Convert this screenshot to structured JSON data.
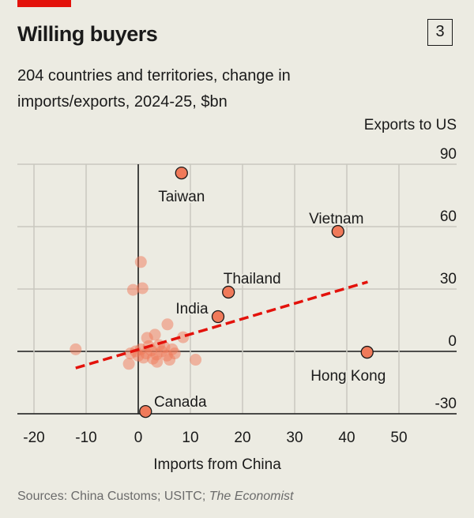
{
  "header": {
    "title": "Willing buyers",
    "badge": "3",
    "subtitle": "204 countries and territories, change in imports/exports, 2024-25, $bn"
  },
  "footer": {
    "source_prefix": "Sources: China Customs; USITC; ",
    "source_italic": "The Economist"
  },
  "colors": {
    "brand_bar": "#e3120b",
    "point": "#f07a5a",
    "trend": "#e3120b",
    "background": "#ecebe2"
  },
  "chart_data": {
    "type": "scatter",
    "xlabel": "Imports from China",
    "ylabel": "Exports to US",
    "xlim": [
      -23,
      61
    ],
    "ylim": [
      -30,
      90
    ],
    "xticks": [
      -20,
      -10,
      0,
      10,
      20,
      30,
      40,
      50
    ],
    "yticks": [
      90,
      60,
      30,
      0,
      -30
    ],
    "grid": true,
    "labeled_points": [
      {
        "name": "Taiwan",
        "x": 8.3,
        "y": 85.8
      },
      {
        "name": "Vietnam",
        "x": 38.3,
        "y": 57.7
      },
      {
        "name": "Thailand",
        "x": 17.3,
        "y": 28.5
      },
      {
        "name": "India",
        "x": 15.3,
        "y": 16.7
      },
      {
        "name": "Hong Kong",
        "x": 43.9,
        "y": -0.4
      },
      {
        "name": "Canada",
        "x": 1.4,
        "y": -28.9
      }
    ],
    "other_points": [
      {
        "x": 0.5,
        "y": 43
      },
      {
        "x": -1,
        "y": 29.6
      },
      {
        "x": 0.8,
        "y": 30.4
      },
      {
        "x": -12,
        "y": 1
      },
      {
        "x": 5.6,
        "y": 13
      },
      {
        "x": 3.2,
        "y": 8
      },
      {
        "x": 1.7,
        "y": 6.5
      },
      {
        "x": 8.6,
        "y": 6.8
      },
      {
        "x": 11,
        "y": -4
      },
      {
        "x": -1.8,
        "y": -6
      },
      {
        "x": 3.6,
        "y": -5
      },
      {
        "x": 6,
        "y": -4
      },
      {
        "x": -0.5,
        "y": 0
      },
      {
        "x": 0.5,
        "y": 1
      },
      {
        "x": 1.5,
        "y": -1
      },
      {
        "x": 2.5,
        "y": 0.5
      },
      {
        "x": 3.5,
        "y": -1.5
      },
      {
        "x": 4.5,
        "y": 0
      },
      {
        "x": 5.5,
        "y": -2
      },
      {
        "x": 6.5,
        "y": 1
      },
      {
        "x": 7,
        "y": -1
      },
      {
        "x": 1,
        "y": -3
      },
      {
        "x": 2,
        "y": 2.5
      },
      {
        "x": 4,
        "y": 3
      },
      {
        "x": -1.5,
        "y": -1
      },
      {
        "x": 0,
        "y": -2
      },
      {
        "x": 2.8,
        "y": -3.5
      },
      {
        "x": 5,
        "y": 2
      }
    ],
    "trendline": {
      "x": [
        -12,
        44
      ],
      "y": [
        -8,
        33.4
      ]
    }
  }
}
